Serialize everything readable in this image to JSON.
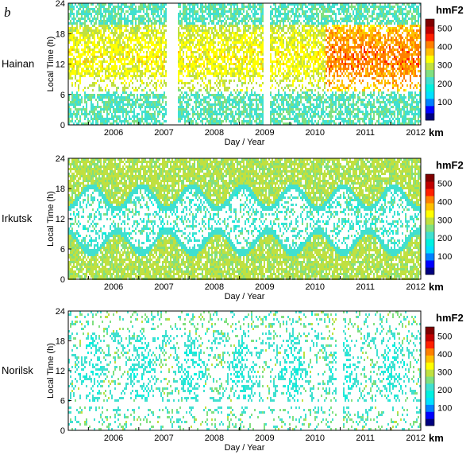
{
  "figure": {
    "panel_letter": "b"
  },
  "chart_data": [
    {
      "type": "heatmap",
      "station": "Hainan",
      "ylabel": "Local Time (h)",
      "xlabel": "Day / Year",
      "x_ticks": [
        "2006",
        "2007",
        "2008",
        "2009",
        "2010",
        "2011",
        "2012"
      ],
      "y_ticks": [
        "0",
        "6",
        "12",
        "18",
        "24"
      ],
      "xlim": [
        2005.6,
        2012.6
      ],
      "ylim": [
        0,
        24
      ],
      "colorbar": {
        "title": "hmF2",
        "unit": "km",
        "ticks": [
          "100",
          "200",
          "300",
          "400",
          "500"
        ],
        "range": [
          0,
          550
        ]
      },
      "pattern": "hainan",
      "data_gaps": [
        [
          2007.55,
          2007.75
        ],
        [
          2009.45,
          2009.6
        ]
      ]
    },
    {
      "type": "heatmap",
      "station": "Irkutsk",
      "ylabel": "Local Time (h)",
      "xlabel": "Day / Year",
      "x_ticks": [
        "2006",
        "2007",
        "2008",
        "2009",
        "2010",
        "2011",
        "2012"
      ],
      "y_ticks": [
        "0",
        "6",
        "12",
        "18",
        "24"
      ],
      "xlim": [
        2005.6,
        2012.6
      ],
      "ylim": [
        0,
        24
      ],
      "colorbar": {
        "title": "hmF2",
        "unit": "km",
        "ticks": [
          "100",
          "200",
          "300",
          "400",
          "500"
        ],
        "range": [
          0,
          550
        ]
      },
      "pattern": "midlat",
      "data_gaps": []
    },
    {
      "type": "heatmap",
      "station": "Norilsk",
      "ylabel": "Local Time (h)",
      "xlabel": "Day / Year",
      "x_ticks": [
        "2006",
        "2007",
        "2008",
        "2009",
        "2010",
        "2011",
        "2012"
      ],
      "y_ticks": [
        "0",
        "6",
        "12",
        "18",
        "24"
      ],
      "xlim": [
        2005.6,
        2012.6
      ],
      "ylim": [
        0,
        24
      ],
      "colorbar": {
        "title": "hmF2",
        "unit": "km",
        "ticks": [
          "100",
          "200",
          "300",
          "400",
          "500"
        ],
        "range": [
          0,
          550
        ]
      },
      "pattern": "highlat",
      "data_gaps": [
        [
          2010.9,
          2011.05
        ]
      ]
    }
  ],
  "colors": {
    "colormap": [
      "#000080",
      "#0000ff",
      "#0080ff",
      "#00e0ff",
      "#00f0e0",
      "#40e0d0",
      "#80e080",
      "#c0e040",
      "#ffff00",
      "#ffc000",
      "#ff8000",
      "#ff2000",
      "#c00000",
      "#800000"
    ]
  }
}
